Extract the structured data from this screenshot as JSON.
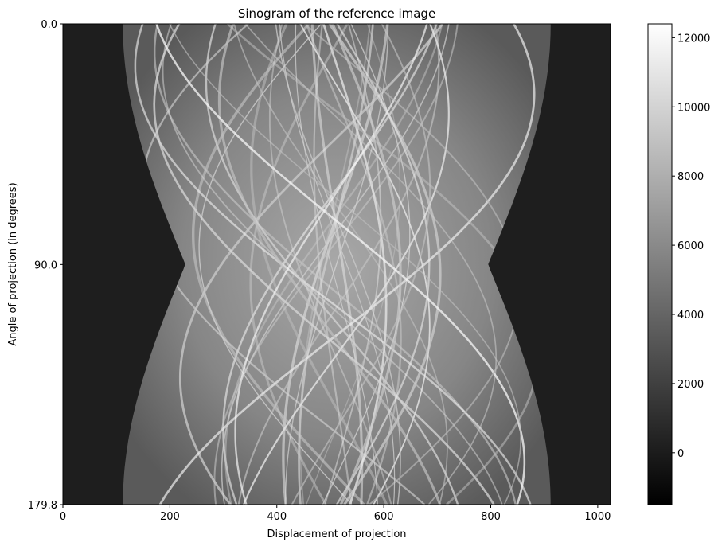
{
  "chart_data": {
    "type": "heatmap",
    "title": "Sinogram of the reference image",
    "xlabel": "Displacement of projection",
    "ylabel": "Angle of projection (in degrees)",
    "xlim": [
      0,
      1024
    ],
    "ylim": [
      0.0,
      179.8
    ],
    "x_ticks": [
      0,
      200,
      400,
      600,
      800,
      1000
    ],
    "x_tick_labels": [
      "0",
      "200",
      "400",
      "600",
      "800",
      "1000"
    ],
    "y_ticks": [
      0.0,
      90.0,
      179.8
    ],
    "y_tick_labels": [
      "0.0",
      "90.0",
      "179.8"
    ],
    "y_inverted": true,
    "colormap": "gray",
    "colorbar": {
      "vmin": -1500,
      "vmax": 12400,
      "ticks": [
        0,
        2000,
        4000,
        6000,
        8000,
        10000,
        12000
      ],
      "tick_labels": [
        "0",
        "2000",
        "4000",
        "6000",
        "8000",
        "10000",
        "12000"
      ]
    },
    "background_value": 0,
    "grid": false,
    "legend": "none"
  }
}
